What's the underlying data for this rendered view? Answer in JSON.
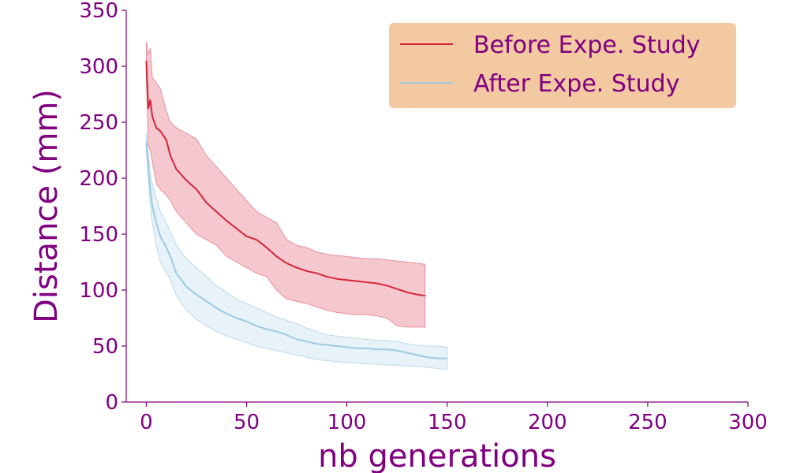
{
  "chart_data": {
    "type": "line",
    "title": "",
    "xlabel": "nb generations",
    "ylabel": "Distance (mm)",
    "xlim": [
      -10,
      300
    ],
    "ylim": [
      0,
      350
    ],
    "xticks": [
      "0",
      "50",
      "100",
      "150",
      "200",
      "250",
      "300"
    ],
    "yticks": [
      "0",
      "50",
      "100",
      "150",
      "200",
      "250",
      "300",
      "350"
    ],
    "grid": false,
    "legend_position": "top-right",
    "colors": {
      "text": "#800080",
      "legend_bg": "#f2c9a1",
      "before_line": "#d62538",
      "before_band": "#f2b4bd",
      "after_line": "#9ccbe0",
      "after_band": "#d7e9f5"
    },
    "series": [
      {
        "name": "Before Expe. Study",
        "x": [
          0,
          1,
          2,
          3,
          5,
          7,
          10,
          12,
          15,
          20,
          25,
          30,
          35,
          40,
          45,
          50,
          55,
          60,
          65,
          70,
          75,
          80,
          85,
          90,
          95,
          100,
          105,
          110,
          115,
          120,
          125,
          130,
          135,
          139
        ],
        "y": [
          305,
          262,
          270,
          255,
          245,
          242,
          234,
          220,
          208,
          198,
          190,
          178,
          170,
          162,
          155,
          148,
          145,
          138,
          130,
          124,
          120,
          117,
          115,
          112,
          110,
          109,
          108,
          107,
          106,
          104,
          101,
          98,
          96,
          95
        ],
        "lower": [
          290,
          230,
          225,
          215,
          195,
          190,
          185,
          180,
          170,
          160,
          150,
          145,
          140,
          130,
          125,
          120,
          115,
          112,
          100,
          92,
          90,
          88,
          85,
          82,
          80,
          79,
          78,
          78,
          77,
          75,
          68,
          67,
          67,
          67
        ],
        "upper": [
          322,
          310,
          316,
          290,
          285,
          280,
          260,
          250,
          245,
          240,
          235,
          220,
          210,
          200,
          190,
          180,
          170,
          165,
          160,
          145,
          140,
          138,
          134,
          132,
          131,
          130,
          129,
          128,
          128,
          127,
          126,
          125,
          124,
          123
        ]
      },
      {
        "name": "After Expe. Study",
        "x": [
          0,
          1,
          2,
          3,
          5,
          7,
          10,
          12,
          15,
          20,
          25,
          30,
          35,
          40,
          45,
          50,
          55,
          60,
          65,
          70,
          75,
          80,
          85,
          90,
          95,
          100,
          105,
          110,
          115,
          120,
          125,
          130,
          135,
          140,
          145,
          150
        ],
        "y": [
          232,
          210,
          190,
          175,
          160,
          148,
          138,
          130,
          115,
          103,
          96,
          90,
          84,
          79,
          75,
          72,
          68,
          65,
          63,
          60,
          56,
          54,
          52,
          51,
          50,
          49,
          48,
          48,
          47,
          47,
          46,
          44,
          42,
          40,
          39,
          39
        ],
        "lower": [
          225,
          200,
          175,
          160,
          140,
          125,
          115,
          110,
          95,
          82,
          74,
          68,
          63,
          59,
          56,
          53,
          50,
          48,
          46,
          44,
          42,
          40,
          38,
          37,
          36,
          35,
          35,
          34,
          34,
          33,
          33,
          32,
          32,
          31,
          30,
          29
        ],
        "upper": [
          240,
          222,
          205,
          195,
          182,
          170,
          160,
          152,
          140,
          128,
          120,
          112,
          104,
          98,
          92,
          88,
          84,
          80,
          76,
          73,
          70,
          66,
          63,
          60,
          59,
          58,
          57,
          56,
          55,
          55,
          54,
          52,
          51,
          50,
          50,
          49
        ]
      }
    ]
  }
}
